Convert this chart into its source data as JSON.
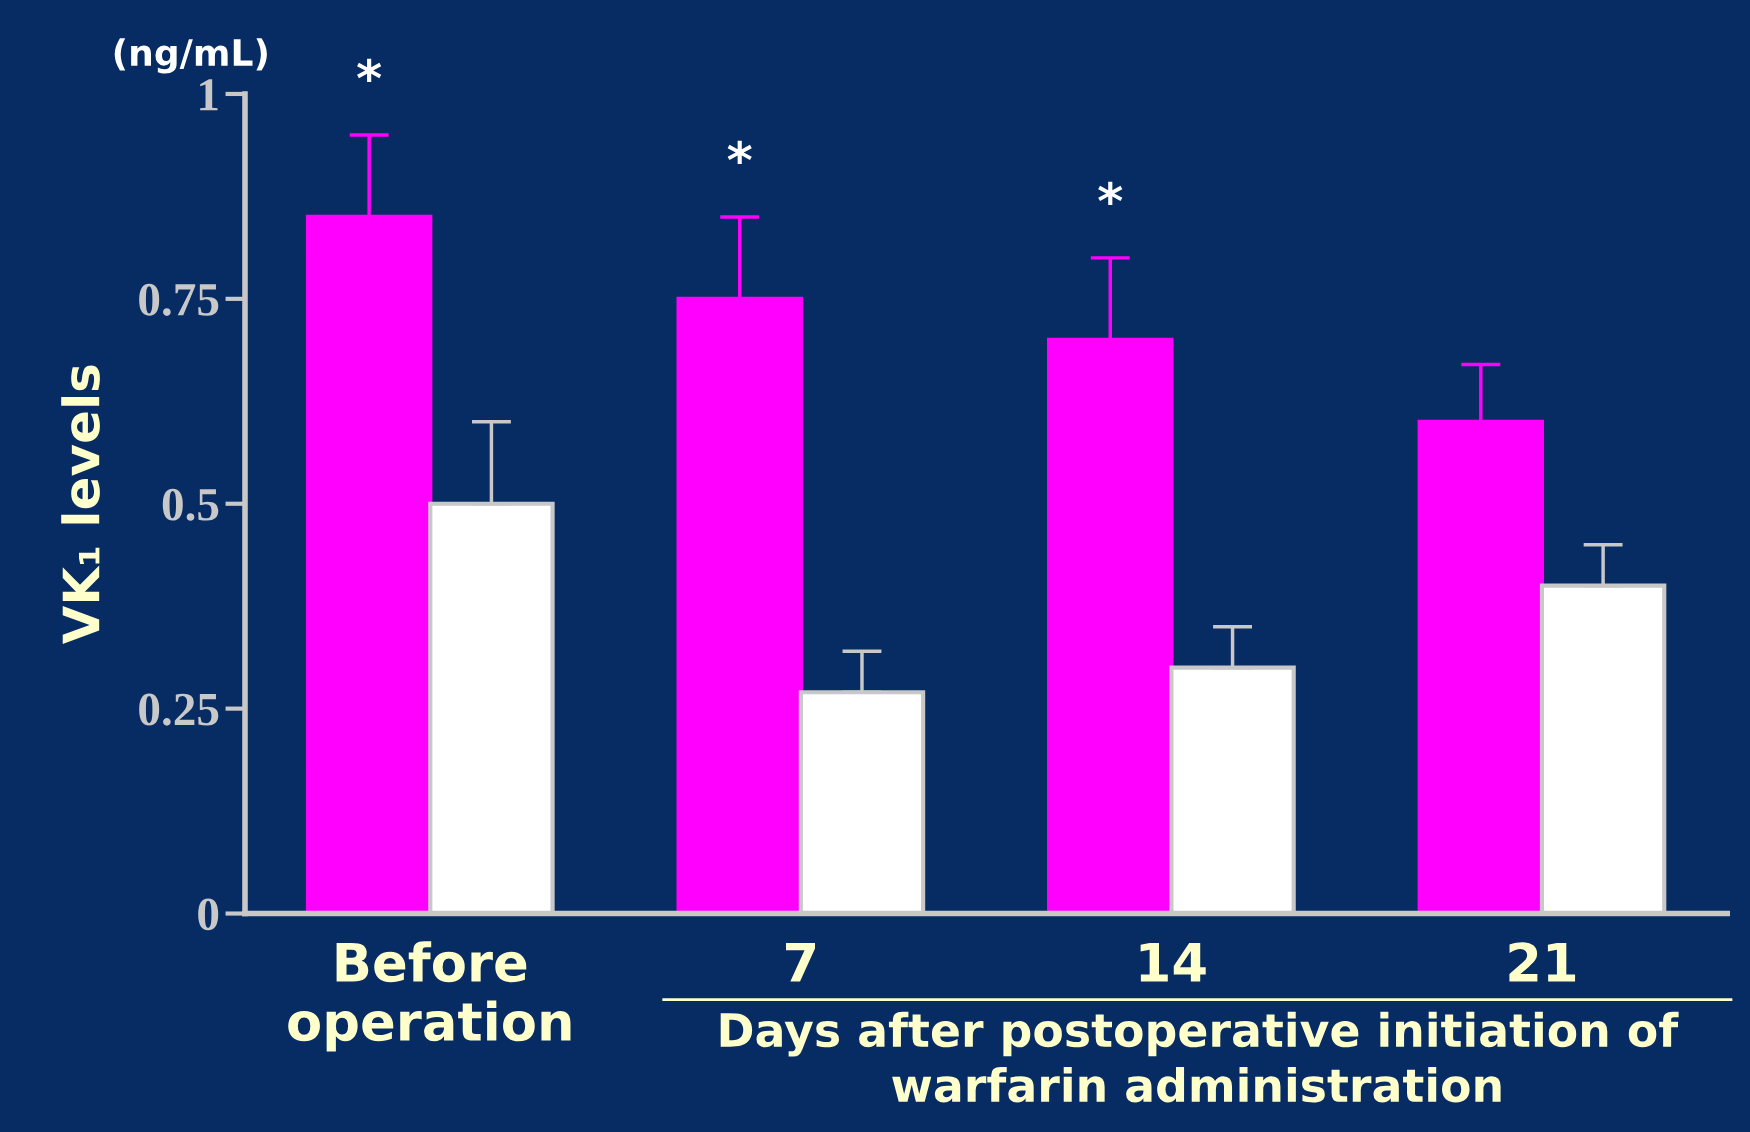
{
  "chart_data": {
    "type": "bar",
    "ylabel": "VK₁ levels",
    "xlabel": "Days after postoperative initiation of warfarin administration",
    "categories": [
      "Before\noperation",
      "7",
      "14",
      "21"
    ],
    "series": [
      {
        "color": "#ff00ff",
        "values": [
          0.85,
          0.75,
          0.7,
          0.6
        ],
        "errors": [
          [
            0.85,
            0.95
          ],
          [
            0.75,
            0.85
          ],
          [
            0.7,
            0.8
          ],
          [
            0.6,
            0.67
          ]
        ]
      },
      {
        "color": "#ffffff",
        "values": [
          0.5,
          0.27,
          0.3,
          0.4
        ],
        "errors": [
          [
            0.5,
            0.6
          ],
          [
            0.27,
            0.32
          ],
          [
            0.3,
            0.35
          ],
          [
            0.4,
            0.45
          ]
        ]
      }
    ],
    "ylim": [
      0,
      1
    ],
    "yticks": [
      0,
      0.25,
      0.5,
      0.75,
      1
    ],
    "grid": false,
    "annotations": [
      "(ng/mL)",
      "*",
      "*",
      "*"
    ]
  }
}
